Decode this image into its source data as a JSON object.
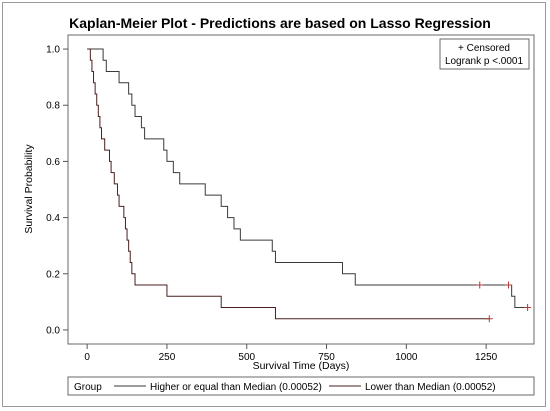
{
  "chart_data": {
    "type": "line",
    "title": "Kaplan-Meier Plot - Predictions are based on Lasso Regression",
    "xlabel": "Survival Time (Days)",
    "ylabel": "Survival Probability",
    "xlim": [
      -60,
      1400
    ],
    "ylim": [
      -0.05,
      1.05
    ],
    "x_ticks": [
      {
        "v": 0,
        "label": "0"
      },
      {
        "v": 250,
        "label": "250"
      },
      {
        "v": 500,
        "label": "500"
      },
      {
        "v": 750,
        "label": "750"
      },
      {
        "v": 1000,
        "label": "1000"
      },
      {
        "v": 1250,
        "label": "1250"
      }
    ],
    "y_ticks": [
      {
        "v": 0,
        "label": "0.0"
      },
      {
        "v": 0.2,
        "label": "0.2"
      },
      {
        "v": 0.4,
        "label": "0.4"
      },
      {
        "v": 0.6,
        "label": "0.6"
      },
      {
        "v": 0.8,
        "label": "0.8"
      },
      {
        "v": 1.0,
        "label": "1.0"
      }
    ],
    "grid": false,
    "step_line": true,
    "legend_title": "Group",
    "legend_placement": "bottom",
    "inset": {
      "censored_label": "+ Censored",
      "logrank_label": "Logrank p <.0001",
      "placement": "top-right"
    },
    "series": [
      {
        "name": "Higher or equal than Median (0.00052)",
        "color": "#3a3a3a",
        "points": [
          [
            0,
            1.0
          ],
          [
            50,
            0.96
          ],
          [
            60,
            0.92
          ],
          [
            100,
            0.88
          ],
          [
            130,
            0.84
          ],
          [
            140,
            0.8
          ],
          [
            150,
            0.76
          ],
          [
            170,
            0.72
          ],
          [
            180,
            0.68
          ],
          [
            240,
            0.64
          ],
          [
            250,
            0.6
          ],
          [
            270,
            0.56
          ],
          [
            290,
            0.52
          ],
          [
            370,
            0.48
          ],
          [
            420,
            0.44
          ],
          [
            440,
            0.4
          ],
          [
            460,
            0.36
          ],
          [
            480,
            0.32
          ],
          [
            580,
            0.28
          ],
          [
            590,
            0.24
          ],
          [
            800,
            0.2
          ],
          [
            840,
            0.16
          ],
          [
            1330,
            0.12
          ],
          [
            1340,
            0.08
          ],
          [
            1380,
            0.08
          ]
        ],
        "censored": [
          [
            1230,
            0.16
          ],
          [
            1320,
            0.16
          ],
          [
            1380,
            0.08
          ]
        ]
      },
      {
        "name": "Lower than Median (0.00052)",
        "color": "#4a1f1f",
        "points": [
          [
            0,
            1.0
          ],
          [
            10,
            0.96
          ],
          [
            15,
            0.92
          ],
          [
            20,
            0.88
          ],
          [
            25,
            0.84
          ],
          [
            30,
            0.8
          ],
          [
            35,
            0.76
          ],
          [
            40,
            0.72
          ],
          [
            45,
            0.68
          ],
          [
            55,
            0.64
          ],
          [
            70,
            0.6
          ],
          [
            75,
            0.56
          ],
          [
            85,
            0.52
          ],
          [
            95,
            0.48
          ],
          [
            100,
            0.44
          ],
          [
            115,
            0.4
          ],
          [
            120,
            0.36
          ],
          [
            125,
            0.32
          ],
          [
            130,
            0.28
          ],
          [
            135,
            0.24
          ],
          [
            140,
            0.2
          ],
          [
            150,
            0.16
          ],
          [
            250,
            0.12
          ],
          [
            420,
            0.08
          ],
          [
            590,
            0.04
          ],
          [
            1260,
            0.04
          ]
        ],
        "censored": [
          [
            1260,
            0.04
          ]
        ]
      }
    ]
  }
}
